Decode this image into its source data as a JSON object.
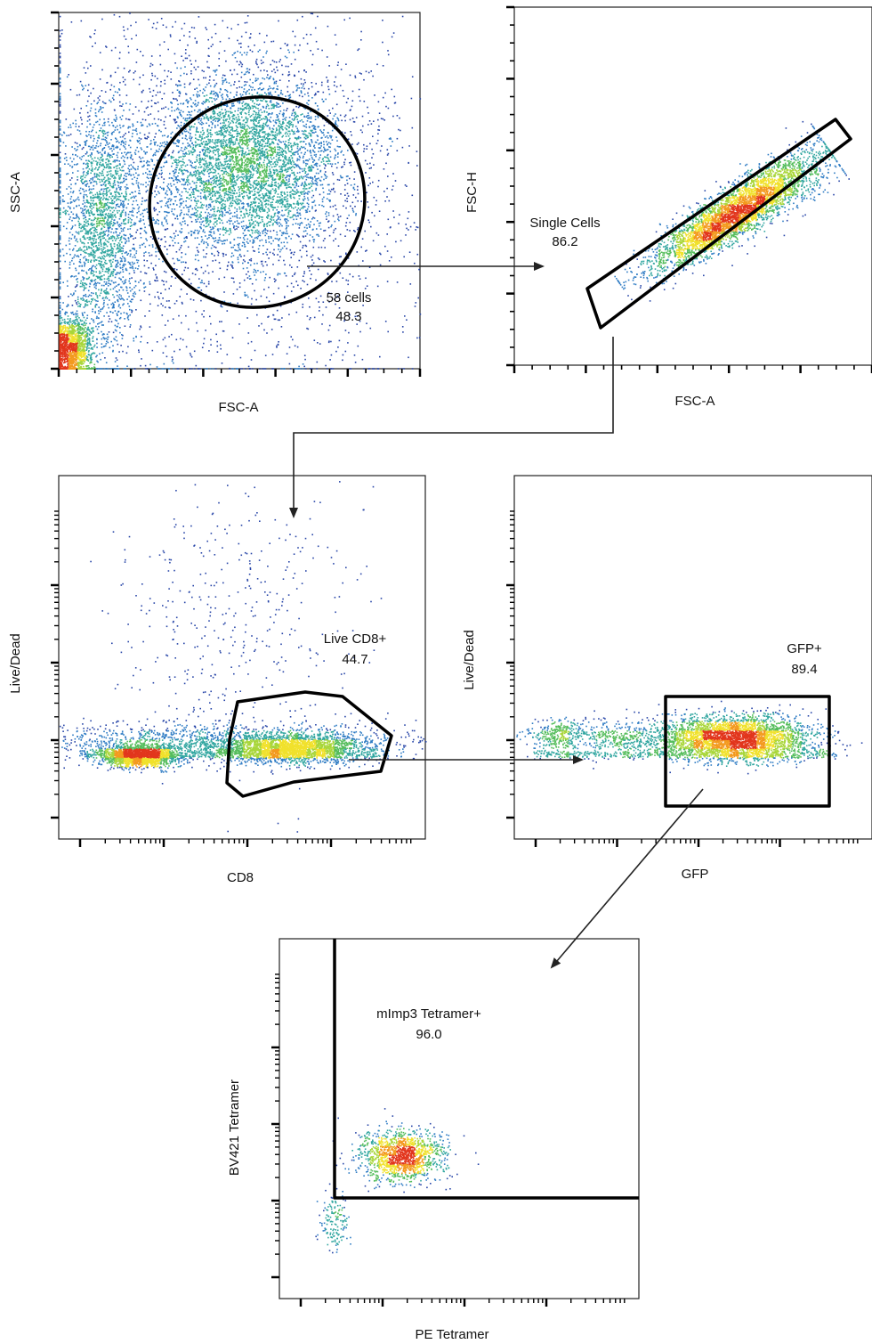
{
  "chart_data": [
    {
      "type": "scatter",
      "panel": "fsc-ssc",
      "xlabel": "FSC-A",
      "ylabel": "SSC-A",
      "x_scale": "linear",
      "y_scale": "linear",
      "color_scale": "density (blue-green-yellow-red)",
      "density_clusters": [
        {
          "cx": 0.52,
          "cy": 0.58,
          "sx": 0.13,
          "sy": 0.12,
          "n": 4200
        },
        {
          "cx": 0.12,
          "cy": 0.4,
          "sx": 0.05,
          "sy": 0.17,
          "n": 2000
        },
        {
          "cx": 0.03,
          "cy": 0.06,
          "sx": 0.03,
          "sy": 0.04,
          "n": 1500
        },
        {
          "cx": 0.45,
          "cy": 0.5,
          "sx": 0.3,
          "sy": 0.3,
          "n": 2600
        }
      ],
      "gate": {
        "shape": "ellipse",
        "name": "58 cells",
        "percent": "48.3"
      }
    },
    {
      "type": "scatter",
      "panel": "singlets",
      "xlabel": "FSC-A",
      "ylabel": "FSC-H",
      "x_scale": "linear",
      "y_scale": "linear",
      "color_scale": "density (blue-green-yellow-red)",
      "density_clusters": [
        {
          "along": 0.55,
          "spread": 0.2,
          "width": 0.025,
          "n": 4200
        }
      ],
      "gate": {
        "shape": "polygon",
        "name": "Single Cells",
        "percent": "86.2"
      }
    },
    {
      "type": "scatter",
      "panel": "live-cd8",
      "xlabel": "CD8",
      "ylabel": "Live/Dead",
      "x_scale": "logicle",
      "y_scale": "logicle",
      "color_scale": "density (blue-green-yellow-red)",
      "density_clusters": [
        {
          "cx": 0.22,
          "cy": 0.23,
          "sx": 0.05,
          "sy": 0.015,
          "n": 1800
        },
        {
          "cx": 0.63,
          "cy": 0.25,
          "sx": 0.1,
          "sy": 0.02,
          "n": 2200
        },
        {
          "cx": 0.45,
          "cy": 0.27,
          "sx": 0.28,
          "sy": 0.025,
          "n": 1400
        },
        {
          "cx": 0.48,
          "cy": 0.6,
          "sx": 0.18,
          "sy": 0.2,
          "n": 420
        }
      ],
      "gate": {
        "shape": "polygon",
        "name": "Live CD8+",
        "percent": "44.7"
      }
    },
    {
      "type": "scatter",
      "panel": "gfp",
      "xlabel": "GFP",
      "ylabel": "Live/Dead",
      "x_scale": "logicle",
      "y_scale": "logicle",
      "color_scale": "density (blue-green-yellow-red)",
      "density_clusters": [
        {
          "cx": 0.62,
          "cy": 0.28,
          "sx": 0.1,
          "sy": 0.03,
          "n": 3200
        },
        {
          "cx": 0.3,
          "cy": 0.28,
          "sx": 0.15,
          "sy": 0.025,
          "n": 700
        },
        {
          "cx": 0.12,
          "cy": 0.29,
          "sx": 0.03,
          "sy": 0.02,
          "n": 180
        }
      ],
      "gate": {
        "shape": "rectangle",
        "name": "GFP+",
        "percent": "89.4"
      }
    },
    {
      "type": "scatter",
      "panel": "tetramer",
      "xlabel": "PE Tetramer",
      "ylabel": "BV421 Tetramer",
      "x_scale": "logicle",
      "y_scale": "logicle",
      "color_scale": "density (blue-green-yellow-red)",
      "density_clusters": [
        {
          "cx": 0.34,
          "cy": 0.4,
          "sx": 0.06,
          "sy": 0.035,
          "n": 1400
        },
        {
          "cx": 0.15,
          "cy": 0.22,
          "sx": 0.02,
          "sy": 0.04,
          "n": 150
        }
      ],
      "gate": {
        "shape": "quadrant",
        "name": "mImp3 Tetramer+",
        "percent": "96.0"
      }
    }
  ],
  "gating_flow": [
    "58 cells -> Single Cells",
    "Single Cells -> Live CD8+",
    "Live CD8+ -> GFP+",
    "GFP+ -> mImp3 Tetramer+"
  ]
}
